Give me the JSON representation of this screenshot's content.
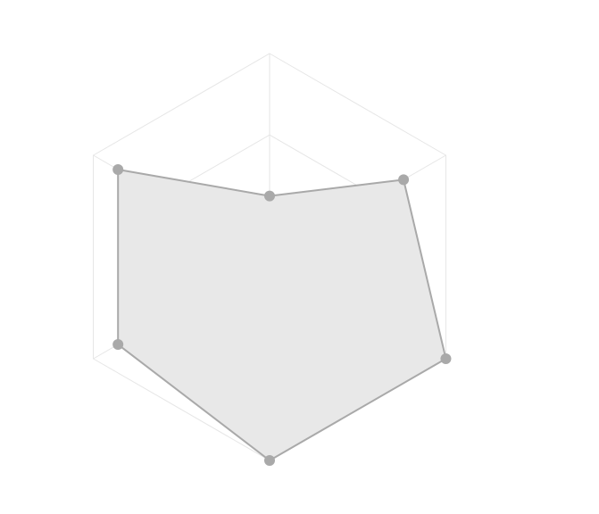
{
  "chart_data": {
    "type": "radar",
    "axes_count": 6,
    "rmax": 1.0,
    "rings": [
      0.2,
      0.6,
      1.0
    ],
    "grid": true,
    "series": [
      {
        "values": [
          0.3,
          0.76,
          1.0,
          1.0,
          0.86,
          0.86
        ]
      }
    ],
    "colors": {
      "fill": "#e8e8e8",
      "stroke": "#a9a9a9",
      "point": "#a9a9a9",
      "grid": "#e6e6e6"
    }
  }
}
